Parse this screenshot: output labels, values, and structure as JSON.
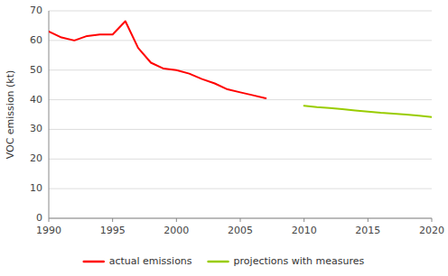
{
  "chart_data": {
    "type": "line",
    "ylabel": "VOC emission (kt)",
    "series": [
      {
        "name": "actual emissions",
        "color": "#ff0000",
        "x": [
          1990,
          1991,
          1992,
          1993,
          1994,
          1995,
          1996,
          1997,
          1998,
          1999,
          2000,
          2001,
          2002,
          2003,
          2004,
          2005,
          2006,
          2007
        ],
        "values": [
          63.0,
          61.0,
          60.0,
          61.5,
          62.0,
          62.0,
          66.5,
          57.5,
          52.5,
          50.5,
          50.0,
          48.8,
          47.0,
          45.5,
          43.5,
          42.5,
          41.5,
          40.5
        ]
      },
      {
        "name": "projections with measures",
        "color": "#99cc00",
        "x": [
          2010,
          2011,
          2012,
          2013,
          2014,
          2015,
          2016,
          2017,
          2018,
          2019,
          2020
        ],
        "values": [
          38.0,
          37.5,
          37.2,
          36.8,
          36.4,
          36.0,
          35.6,
          35.3,
          35.0,
          34.6,
          34.2
        ]
      }
    ],
    "xlim": [
      1990,
      2020
    ],
    "ylim": [
      0,
      70
    ],
    "xticks": [
      1990,
      1995,
      2000,
      2005,
      2010,
      2015,
      2020
    ],
    "yticks": [
      0,
      10,
      20,
      30,
      40,
      50,
      60,
      70
    ],
    "grid": "y",
    "legend": "bottom"
  }
}
